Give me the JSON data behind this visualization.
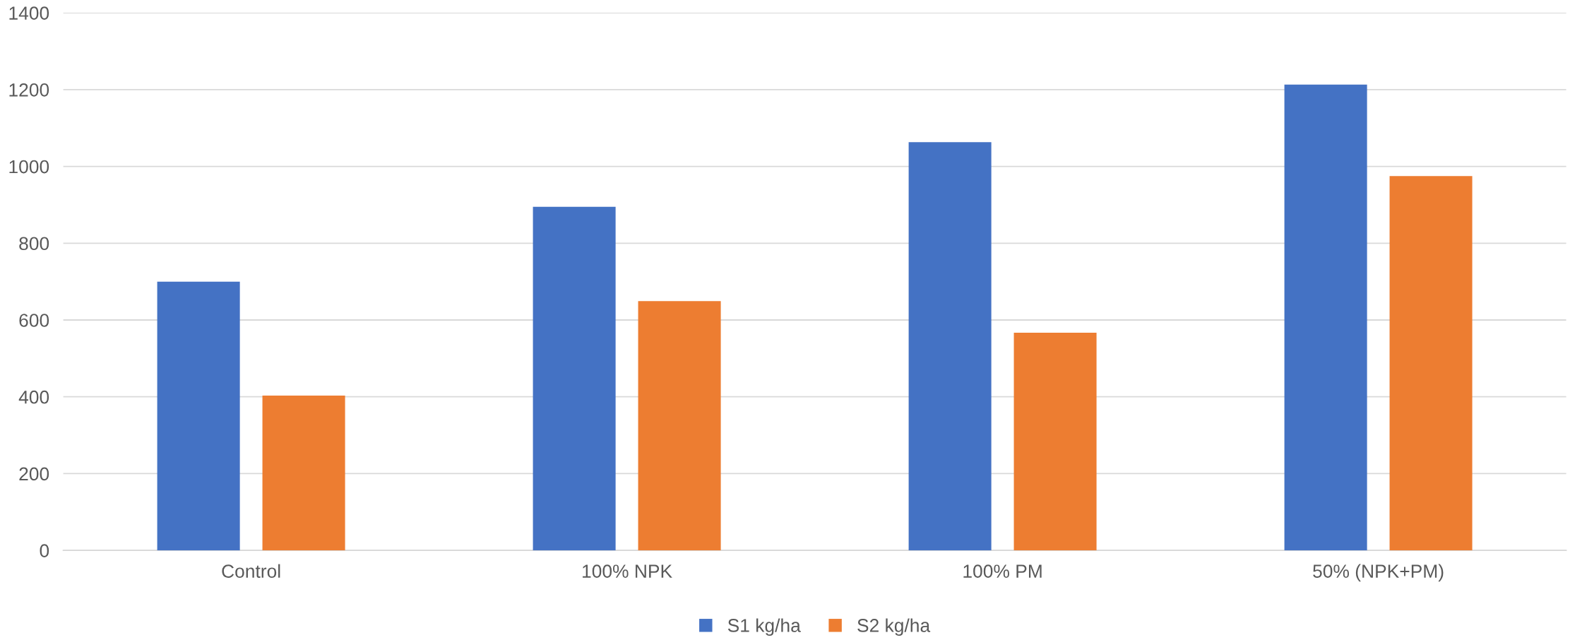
{
  "chart_data": {
    "type": "bar",
    "categories": [
      "Control",
      "100% NPK",
      "100% PM",
      "50% (NPK+PM)"
    ],
    "series": [
      {
        "name": "S1 kg/ha",
        "color": "#4472c4",
        "values": [
          700,
          895,
          1063,
          1213
        ]
      },
      {
        "name": "S2 kg/ha",
        "color": "#ed7d31",
        "values": [
          403,
          649,
          567,
          975
        ]
      }
    ],
    "ylim": [
      0,
      1400
    ],
    "yticks": [
      0,
      200,
      400,
      600,
      800,
      1000,
      1200,
      1400
    ],
    "grid": "y",
    "legend": "bottom"
  }
}
